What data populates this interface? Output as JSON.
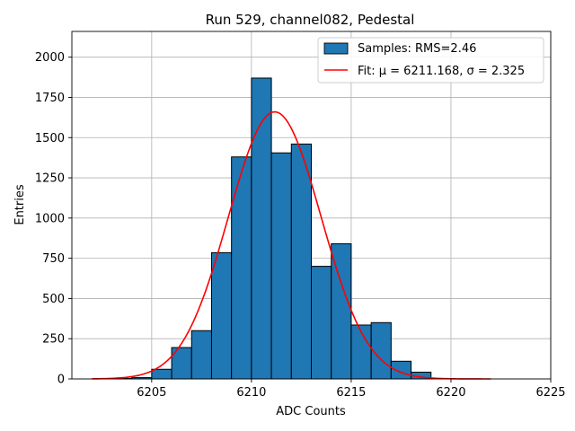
{
  "chart_data": {
    "type": "bar",
    "title": "Run 529, channel082, Pedestal",
    "xlabel": "ADC Counts",
    "ylabel": "Entries",
    "xlim": [
      6201,
      6225
    ],
    "ylim": [
      0,
      2160
    ],
    "xticks": [
      6205,
      6210,
      6215,
      6220,
      6225
    ],
    "yticks": [
      0,
      250,
      500,
      750,
      1000,
      1250,
      1500,
      1750,
      2000
    ],
    "grid": true,
    "legend_position": "top-right",
    "histogram": {
      "name": "Samples: RMS=2.46",
      "color": "#1f77b4",
      "bin_width": 1,
      "bin_starts": [
        6203,
        6204,
        6205,
        6206,
        6207,
        6208,
        6209,
        6210,
        6211,
        6212,
        6213,
        6214,
        6215,
        6216,
        6217,
        6218
      ],
      "values": [
        3,
        8,
        60,
        195,
        300,
        785,
        1380,
        1870,
        1405,
        1460,
        700,
        840,
        335,
        350,
        110,
        42
      ]
    },
    "fit": {
      "name": "Fit: μ = 6211.168, σ = 2.325",
      "color": "#ff0000",
      "mu": 6211.168,
      "sigma": 2.325,
      "amplitude": 1660,
      "x_range": [
        6202,
        6222
      ]
    }
  }
}
